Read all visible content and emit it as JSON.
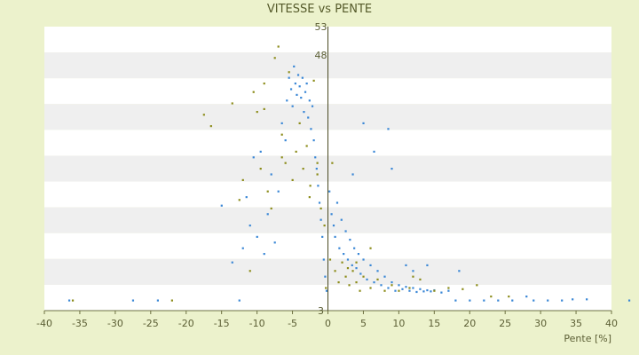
{
  "chart_data": {
    "type": "scatter",
    "title": "VITESSE vs PENTE",
    "xlabel": "Pente [%]",
    "ylabel": "",
    "xlim": [
      -40,
      40
    ],
    "ylim": [
      3,
      53
    ],
    "x_ticks": [
      "-40",
      "-35",
      "-30",
      "-25",
      "-20",
      "-15",
      "-10",
      "-5",
      "0",
      "5",
      "10",
      "15",
      "20",
      "25",
      "30",
      "35",
      "40"
    ],
    "y_tick_labels_visible": [
      "53",
      "48",
      "3"
    ],
    "grid": "horizontal bands",
    "legend": "none",
    "series": [
      {
        "color": "#3a87d6",
        "points": [
          [
            -36.5,
            4.8
          ],
          [
            -27.5,
            4.8
          ],
          [
            -24,
            4.8
          ],
          [
            -15,
            21.5
          ],
          [
            -13.5,
            11.5
          ],
          [
            -12.5,
            4.8
          ],
          [
            -11.5,
            23
          ],
          [
            -11,
            18
          ],
          [
            -10.5,
            30
          ],
          [
            -10,
            16
          ],
          [
            -9.5,
            31
          ],
          [
            -9,
            13
          ],
          [
            -8.5,
            20
          ],
          [
            -8,
            27
          ],
          [
            -7.5,
            15
          ],
          [
            -7,
            24
          ],
          [
            -6.5,
            36
          ],
          [
            -6,
            33
          ],
          [
            -5.8,
            40
          ],
          [
            -5.5,
            44
          ],
          [
            -5.2,
            42
          ],
          [
            -5,
            39
          ],
          [
            -4.8,
            46
          ],
          [
            -4.6,
            43
          ],
          [
            -4.4,
            41
          ],
          [
            -4.2,
            44.5
          ],
          [
            -4,
            42.5
          ],
          [
            -3.8,
            40.5
          ],
          [
            -3.6,
            44
          ],
          [
            -3.4,
            38
          ],
          [
            -3.2,
            41.5
          ],
          [
            -3,
            43
          ],
          [
            -2.8,
            37
          ],
          [
            -2.6,
            40
          ],
          [
            -2.4,
            35
          ],
          [
            -2.2,
            39
          ],
          [
            -2,
            33
          ],
          [
            -1.8,
            30
          ],
          [
            -1.6,
            28
          ],
          [
            -1.4,
            25
          ],
          [
            -1.2,
            22
          ],
          [
            -1,
            19
          ],
          [
            -0.8,
            16
          ],
          [
            -0.6,
            12
          ],
          [
            -0.4,
            9
          ],
          [
            -0.2,
            6.5
          ],
          [
            0.2,
            24
          ],
          [
            0.5,
            20
          ],
          [
            0.8,
            18
          ],
          [
            1,
            16
          ],
          [
            1.3,
            22
          ],
          [
            1.6,
            14
          ],
          [
            1.9,
            19
          ],
          [
            2.2,
            13
          ],
          [
            2.5,
            17
          ],
          [
            2.8,
            12
          ],
          [
            3.1,
            15.5
          ],
          [
            3.4,
            11
          ],
          [
            3.7,
            14
          ],
          [
            4,
            10.5
          ],
          [
            4.3,
            13
          ],
          [
            4.6,
            9.5
          ],
          [
            5,
            12
          ],
          [
            5.5,
            8.5
          ],
          [
            6,
            11
          ],
          [
            6.5,
            8
          ],
          [
            7,
            10
          ],
          [
            7.5,
            7.5
          ],
          [
            8,
            9
          ],
          [
            8.5,
            7
          ],
          [
            9,
            8
          ],
          [
            9.5,
            6.5
          ],
          [
            10,
            7.5
          ],
          [
            10.5,
            6.8
          ],
          [
            11,
            7.2
          ],
          [
            11.5,
            6.5
          ],
          [
            12,
            7
          ],
          [
            12.5,
            6.3
          ],
          [
            13,
            6.8
          ],
          [
            13.5,
            6.4
          ],
          [
            14,
            6.6
          ],
          [
            14.5,
            6.4
          ],
          [
            15,
            6.6
          ],
          [
            16,
            6.2
          ],
          [
            17,
            6.5
          ],
          [
            18,
            4.8
          ],
          [
            20,
            4.8
          ],
          [
            22,
            4.8
          ],
          [
            24,
            4.8
          ],
          [
            26,
            4.8
          ],
          [
            28,
            5.5
          ],
          [
            29,
            4.8
          ],
          [
            31,
            4.8
          ],
          [
            33,
            4.8
          ],
          [
            34.5,
            5
          ],
          [
            36.5,
            5
          ],
          [
            42.5,
            4.8
          ],
          [
            5,
            36
          ],
          [
            8.5,
            35
          ],
          [
            11,
            11
          ],
          [
            12,
            10
          ],
          [
            14,
            11
          ],
          [
            18.5,
            10
          ],
          [
            6.5,
            31
          ],
          [
            3.5,
            27
          ],
          [
            9,
            28
          ],
          [
            -12,
            14
          ]
        ]
      },
      {
        "color": "#8c8c1a",
        "points": [
          [
            -36,
            4.8
          ],
          [
            -22,
            4.8
          ],
          [
            -17.5,
            37.5
          ],
          [
            -16.5,
            35.5
          ],
          [
            -13.5,
            39.5
          ],
          [
            -12.5,
            22.5
          ],
          [
            -12,
            26
          ],
          [
            -11,
            10
          ],
          [
            -10,
            38
          ],
          [
            -9.5,
            28
          ],
          [
            -9,
            43
          ],
          [
            -8.5,
            24
          ],
          [
            -8,
            21
          ],
          [
            -7.5,
            47.5
          ],
          [
            -7,
            49.5
          ],
          [
            -6.5,
            34
          ],
          [
            -6,
            29
          ],
          [
            -5.5,
            45
          ],
          [
            -5,
            26
          ],
          [
            -4.5,
            31
          ],
          [
            -4,
            36
          ],
          [
            -3.5,
            28
          ],
          [
            -3,
            32
          ],
          [
            -2.5,
            25
          ],
          [
            -2,
            43.5
          ],
          [
            -1.5,
            29
          ],
          [
            -1,
            21
          ],
          [
            -0.5,
            18
          ],
          [
            -0.3,
            7
          ],
          [
            0.3,
            12
          ],
          [
            0.6,
            29
          ],
          [
            1,
            10
          ],
          [
            1.5,
            8
          ],
          [
            2,
            11.5
          ],
          [
            2.5,
            9
          ],
          [
            3,
            7.5
          ],
          [
            3.5,
            10
          ],
          [
            4,
            8
          ],
          [
            4.5,
            6.5
          ],
          [
            5,
            9
          ],
          [
            6,
            7
          ],
          [
            7,
            8.5
          ],
          [
            8,
            6.5
          ],
          [
            9,
            7.5
          ],
          [
            10,
            6.5
          ],
          [
            11.5,
            7
          ],
          [
            13,
            8.5
          ],
          [
            15,
            6.5
          ],
          [
            17,
            7
          ],
          [
            19,
            6.8
          ],
          [
            21,
            7.5
          ],
          [
            23,
            5.5
          ],
          [
            25.5,
            5.5
          ],
          [
            -2.6,
            23
          ],
          [
            2.8,
            10.5
          ],
          [
            -6.5,
            30
          ],
          [
            -1.5,
            27
          ],
          [
            4,
            11.5
          ],
          [
            6,
            14
          ],
          [
            12,
            9
          ],
          [
            -10.5,
            41.5
          ],
          [
            -9,
            38.5
          ]
        ]
      }
    ]
  }
}
